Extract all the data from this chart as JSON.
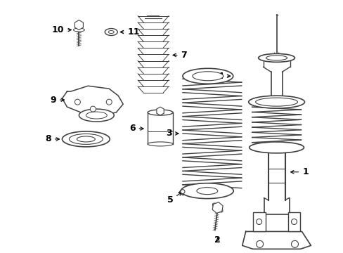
{
  "background_color": "#ffffff",
  "line_color": "#404040",
  "fig_width": 4.89,
  "fig_height": 3.6,
  "dpi": 100,
  "xlim": [
    0,
    489
  ],
  "ylim": [
    0,
    360
  ]
}
